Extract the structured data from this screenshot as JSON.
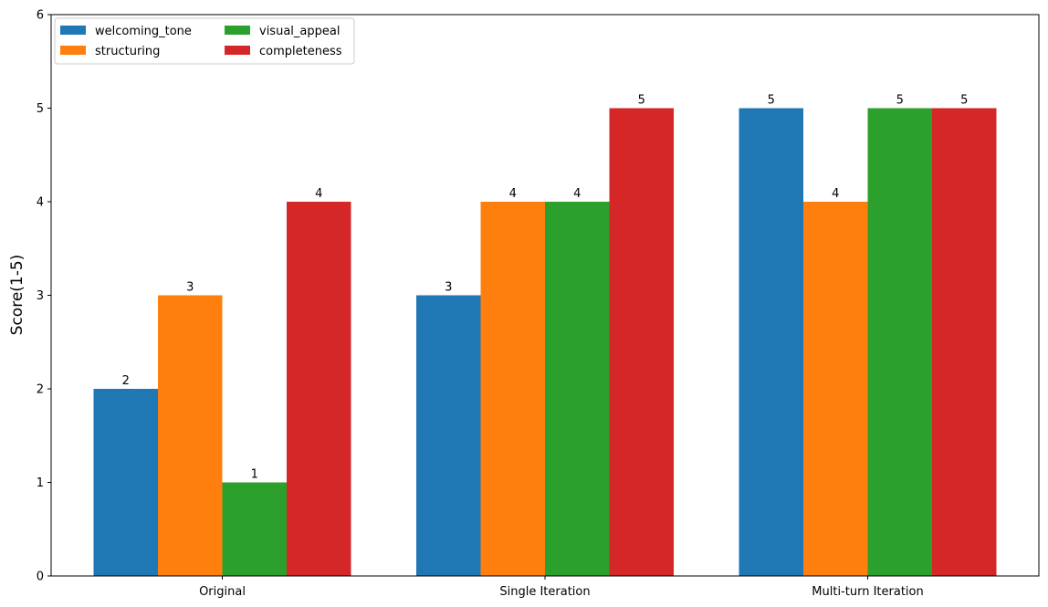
{
  "chart_data": {
    "type": "bar",
    "title": "",
    "xlabel": "",
    "ylabel": "Score(1-5)",
    "ylim": [
      0,
      6
    ],
    "yticks": [
      0,
      1,
      2,
      3,
      4,
      5,
      6
    ],
    "categories": [
      "Original",
      "Single Iteration",
      "Multi-turn Iteration"
    ],
    "series": [
      {
        "name": "welcoming_tone",
        "color": "#1f77b4",
        "values": [
          2,
          3,
          5
        ]
      },
      {
        "name": "structuring",
        "color": "#ff7f0e",
        "values": [
          3,
          4,
          4
        ]
      },
      {
        "name": "visual_appeal",
        "color": "#2ca02c",
        "values": [
          1,
          4,
          5
        ]
      },
      {
        "name": "completeness",
        "color": "#d62728",
        "values": [
          4,
          5,
          5
        ]
      }
    ],
    "legend": {
      "position": "top-left",
      "columns": 2
    },
    "grid": false,
    "bar_labels": true
  }
}
